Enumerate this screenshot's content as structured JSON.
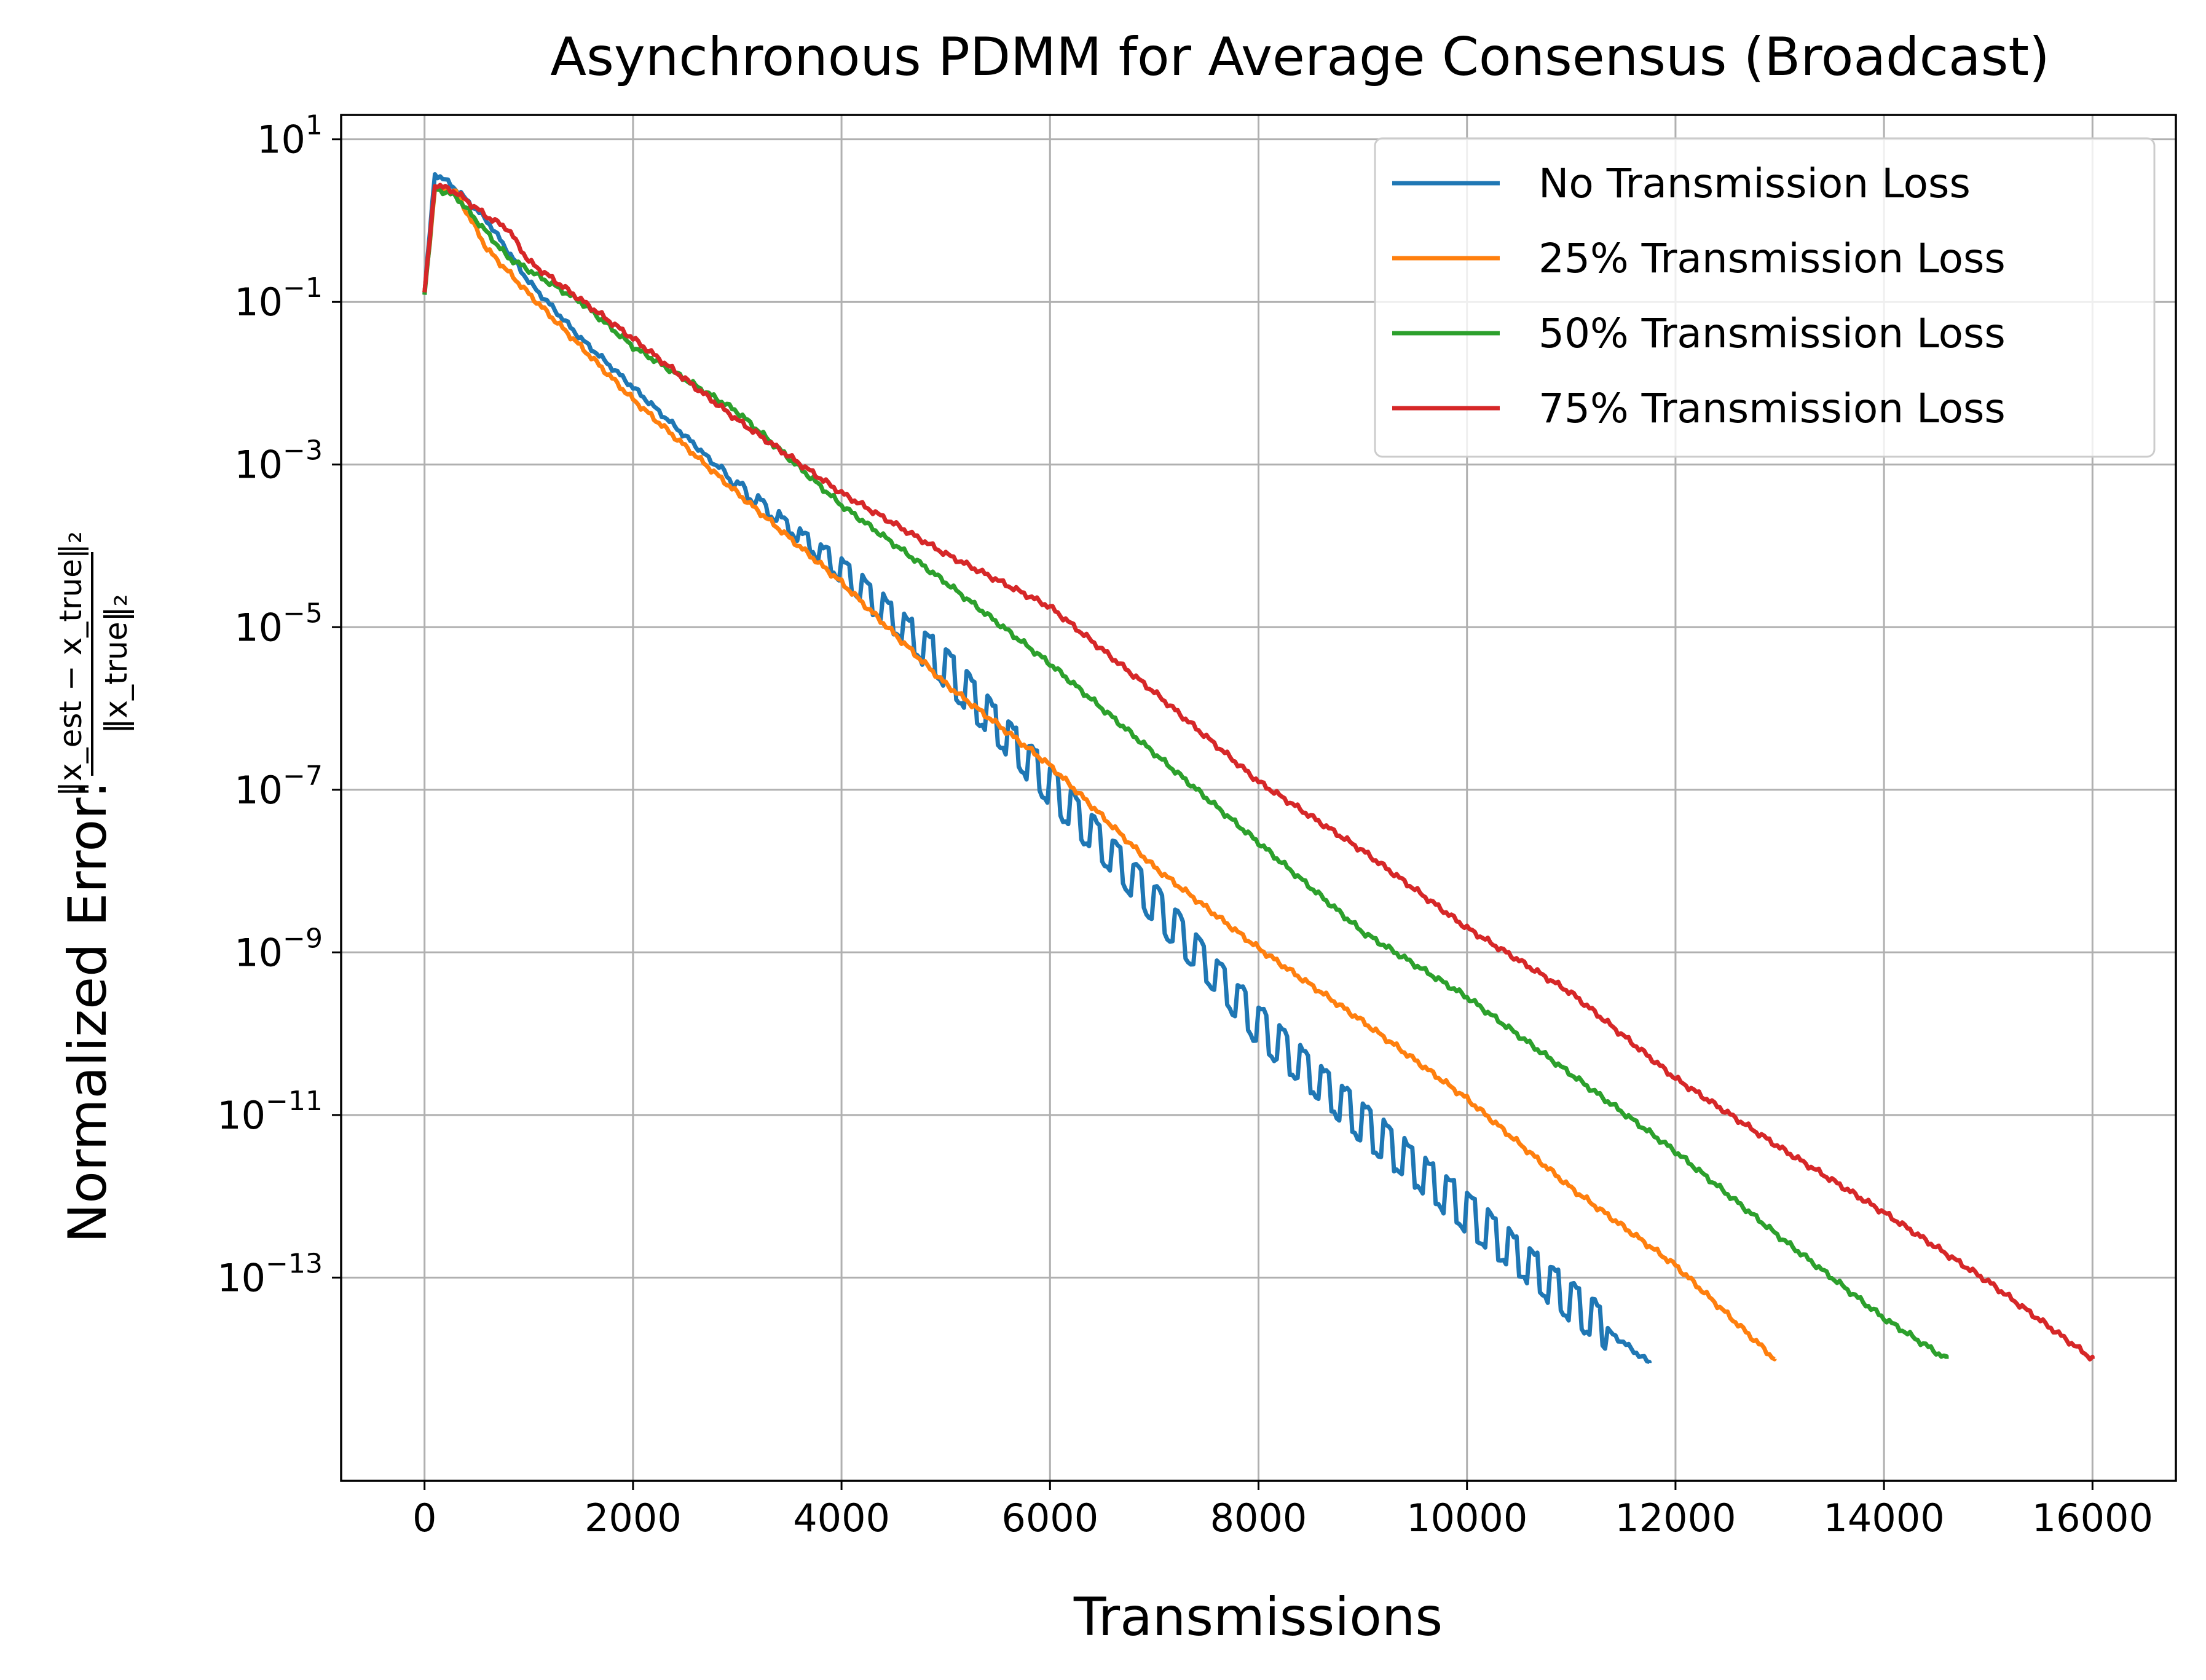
{
  "chart_data": {
    "type": "line",
    "title": "Asynchronous PDMM for Average Consensus (Broadcast)",
    "xlabel": "Transmissions",
    "ylabel": {
      "prefix": "Normalized Error: ",
      "numerator": "‖x_est − x_true‖₂",
      "denominator": "‖x_true‖₂"
    },
    "x_scale": "linear",
    "y_scale": "log",
    "xlim": [
      -800,
      16800
    ],
    "ylim_log10": [
      -15.5,
      1.3
    ],
    "x_ticks": [
      0,
      2000,
      4000,
      6000,
      8000,
      10000,
      12000,
      14000,
      16000
    ],
    "x_tick_labels": [
      "0",
      "2000",
      "4000",
      "6000",
      "8000",
      "10000",
      "12000",
      "14000",
      "16000"
    ],
    "y_ticks_log10": [
      1,
      -1,
      -3,
      -5,
      -7,
      -9,
      -11,
      -13
    ],
    "y_tick_labels": [
      {
        "base": "10",
        "exp": "1"
      },
      {
        "base": "10",
        "exp": "−1"
      },
      {
        "base": "10",
        "exp": "−3"
      },
      {
        "base": "10",
        "exp": "−5"
      },
      {
        "base": "10",
        "exp": "−7"
      },
      {
        "base": "10",
        "exp": "−9"
      },
      {
        "base": "10",
        "exp": "−11"
      },
      {
        "base": "10",
        "exp": "−13"
      }
    ],
    "grid": true,
    "legend_position": "top-right",
    "series": [
      {
        "name": "No Transmission Loss",
        "color": "#1f77b4",
        "x_end": 11750,
        "log_y_end": -14.05,
        "oscillation_log10": 0.45,
        "points_log10": [
          [
            0,
            -0.9
          ],
          [
            100,
            0.58
          ],
          [
            250,
            0.45
          ],
          [
            600,
            0.0
          ],
          [
            1000,
            -0.75
          ],
          [
            1500,
            -1.45
          ],
          [
            2000,
            -2.05
          ],
          [
            3000,
            -3.25
          ],
          [
            4000,
            -4.3
          ],
          [
            5000,
            -5.5
          ],
          [
            6000,
            -6.95
          ],
          [
            7000,
            -8.4
          ],
          [
            8000,
            -9.9
          ],
          [
            9000,
            -11.1
          ],
          [
            10000,
            -12.2
          ],
          [
            11000,
            -13.3
          ],
          [
            11750,
            -14.05
          ]
        ]
      },
      {
        "name": "25% Transmission Loss",
        "color": "#ff7f0e",
        "x_end": 12950,
        "log_y_end": -14.0,
        "oscillation_log10": 0.0,
        "points_log10": [
          [
            0,
            -0.9
          ],
          [
            100,
            0.4
          ],
          [
            300,
            0.35
          ],
          [
            600,
            -0.35
          ],
          [
            1000,
            -0.9
          ],
          [
            2000,
            -2.2
          ],
          [
            3000,
            -3.35
          ],
          [
            4000,
            -4.45
          ],
          [
            5000,
            -5.7
          ],
          [
            6000,
            -6.7
          ],
          [
            7000,
            -7.95
          ],
          [
            8000,
            -8.95
          ],
          [
            9000,
            -9.85
          ],
          [
            10000,
            -10.8
          ],
          [
            11000,
            -11.9
          ],
          [
            12000,
            -12.85
          ],
          [
            12950,
            -14.0
          ]
        ]
      },
      {
        "name": "50% Transmission Loss",
        "color": "#2ca02c",
        "x_end": 14600,
        "log_y_end": -14.0,
        "oscillation_log10": 0.0,
        "points_log10": [
          [
            0,
            -0.9
          ],
          [
            100,
            0.4
          ],
          [
            300,
            0.3
          ],
          [
            800,
            -0.45
          ],
          [
            1500,
            -1.0
          ],
          [
            2000,
            -1.55
          ],
          [
            3000,
            -2.35
          ],
          [
            4000,
            -3.5
          ],
          [
            5000,
            -4.45
          ],
          [
            6000,
            -5.45
          ],
          [
            7000,
            -6.55
          ],
          [
            8000,
            -7.65
          ],
          [
            9000,
            -8.75
          ],
          [
            10000,
            -9.55
          ],
          [
            11000,
            -10.5
          ],
          [
            12000,
            -11.45
          ],
          [
            13000,
            -12.5
          ],
          [
            14000,
            -13.5
          ],
          [
            14600,
            -14.0
          ]
        ]
      },
      {
        "name": "75% Transmission Loss",
        "color": "#d62728",
        "x_end": 16000,
        "log_y_end": -14.0,
        "oscillation_log10": 0.0,
        "points_log10": [
          [
            0,
            -0.9
          ],
          [
            100,
            0.45
          ],
          [
            300,
            0.35
          ],
          [
            600,
            0.05
          ],
          [
            800,
            -0.1
          ],
          [
            1000,
            -0.5
          ],
          [
            2000,
            -1.45
          ],
          [
            3000,
            -2.45
          ],
          [
            4000,
            -3.35
          ],
          [
            5000,
            -4.1
          ],
          [
            6000,
            -4.75
          ],
          [
            7000,
            -5.8
          ],
          [
            8000,
            -6.9
          ],
          [
            9000,
            -7.75
          ],
          [
            10000,
            -8.7
          ],
          [
            11000,
            -9.5
          ],
          [
            12000,
            -10.55
          ],
          [
            13000,
            -11.4
          ],
          [
            14000,
            -12.2
          ],
          [
            15000,
            -13.05
          ],
          [
            16000,
            -14.0
          ]
        ]
      }
    ]
  }
}
